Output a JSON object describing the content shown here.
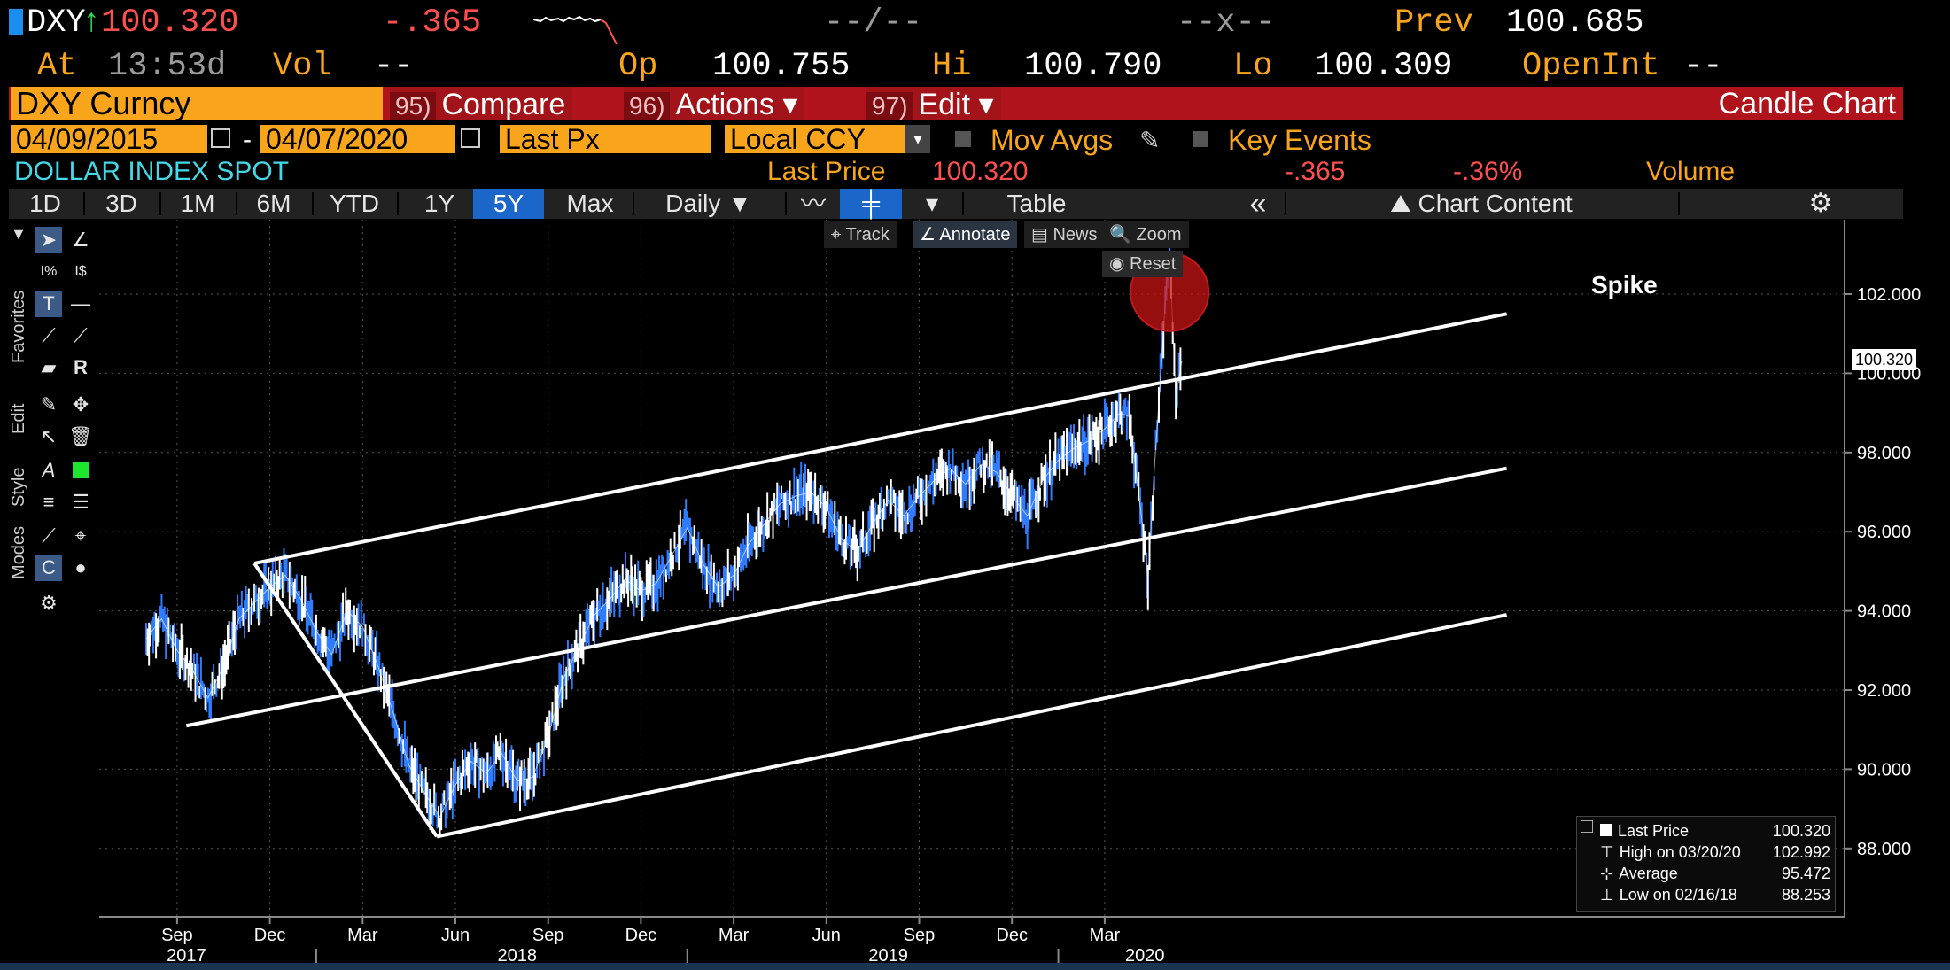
{
  "header": {
    "ticker": "DXY",
    "arrow": "↑",
    "price": "100.320",
    "change": "-.365",
    "bid_ask": "--/--",
    "size": "--x--",
    "prev_label": "Prev",
    "prev_value": "100.685",
    "at_label": "At",
    "time": "13:53d",
    "vol_label": "Vol",
    "vol_value": "--",
    "open_label": "Op",
    "open_value": "100.755",
    "high_label": "Hi",
    "high_value": "100.790",
    "low_label": "Lo",
    "low_value": "100.309",
    "openint_label": "OpenInt",
    "openint_value": "--"
  },
  "command_bar": {
    "security": "DXY Curncy",
    "compare_num": "95)",
    "compare_label": "Compare",
    "actions_num": "96)",
    "actions_label": "Actions ▾",
    "edit_num": "97)",
    "edit_label": "Edit ▾",
    "chart_type": "Candle Chart"
  },
  "settings_bar": {
    "start_date": "04/09/2015",
    "dash": "-",
    "end_date": "04/07/2020",
    "field": "Last Px",
    "currency": "Local CCY",
    "mov_avgs": "Mov Avgs",
    "key_events": "Key Events"
  },
  "info_bar": {
    "name": "DOLLAR INDEX SPOT",
    "last_price_label": "Last Price",
    "last_price_value": "100.320",
    "change": "-.365",
    "change_pct": "-.36%",
    "volume_label": "Volume"
  },
  "tabs": {
    "periods": [
      "1D",
      "3D",
      "1M",
      "6M",
      "YTD",
      "1Y",
      "5Y",
      "Max"
    ],
    "selected": "5Y",
    "frequency": "Daily ▼",
    "table_label": "Table",
    "collapse": "«",
    "chart_content": "Chart Content",
    "gear": "⚙"
  },
  "side_panel": {
    "labels": [
      "Favorites",
      "Edit",
      "Style",
      "Modes"
    ]
  },
  "chart_toolbar": {
    "track": "Track",
    "annotate": "Annotate",
    "news": "News",
    "zoom": "Zoom",
    "reset": "Reset"
  },
  "annotation": {
    "spike_label": "Spike"
  },
  "price_tag": "100.320",
  "legend": {
    "rows": [
      {
        "label": "Last Price",
        "value": "100.320"
      },
      {
        "label": "High on 03/20/20",
        "value": "102.992"
      },
      {
        "label": "Average",
        "value": "95.472"
      },
      {
        "label": "Low on 02/16/18",
        "value": "88.253"
      }
    ]
  },
  "colors": {
    "accent_orange": "#f8a51b",
    "command_red": "#b0131b",
    "selected_tab": "#1b66c9",
    "negative": "#ff4f4f",
    "candle_down": "#2f7cff"
  },
  "chart_data": {
    "type": "line",
    "title": "DOLLAR INDEX SPOT",
    "y_ticks": [
      "102.000",
      "100.000",
      "98.000",
      "96.000",
      "94.000",
      "92.000",
      "90.000",
      "88.000"
    ],
    "ylim": [
      87.0,
      103.5
    ],
    "x_month_labels": [
      "Sep",
      "Dec",
      "Mar",
      "Jun",
      "Sep",
      "Dec",
      "Mar",
      "Jun",
      "Sep",
      "Dec",
      "Mar"
    ],
    "x_year_labels": [
      "2017",
      "2018",
      "2019",
      "2020"
    ],
    "x_range_months": [
      0,
      33.5
    ],
    "series": [
      {
        "name": "DXY",
        "points": [
          [
            0.0,
            93.3
          ],
          [
            0.5,
            93.8
          ],
          [
            1.0,
            93.0
          ],
          [
            1.5,
            92.5
          ],
          [
            2.0,
            91.8
          ],
          [
            2.5,
            92.6
          ],
          [
            3.0,
            93.8
          ],
          [
            3.5,
            94.2
          ],
          [
            4.0,
            94.6
          ],
          [
            4.5,
            94.9
          ],
          [
            5.0,
            94.3
          ],
          [
            5.5,
            93.5
          ],
          [
            6.0,
            92.9
          ],
          [
            6.5,
            94.0
          ],
          [
            7.0,
            93.6
          ],
          [
            7.5,
            92.6
          ],
          [
            8.0,
            91.4
          ],
          [
            8.5,
            90.1
          ],
          [
            9.0,
            89.4
          ],
          [
            9.5,
            88.8
          ],
          [
            10.0,
            89.6
          ],
          [
            10.5,
            90.2
          ],
          [
            11.0,
            89.9
          ],
          [
            11.5,
            90.4
          ],
          [
            12.0,
            89.7
          ],
          [
            12.5,
            89.8
          ],
          [
            13.0,
            90.8
          ],
          [
            13.5,
            92.3
          ],
          [
            14.0,
            93.1
          ],
          [
            14.5,
            93.9
          ],
          [
            15.0,
            94.3
          ],
          [
            15.5,
            94.8
          ],
          [
            16.0,
            94.5
          ],
          [
            16.5,
            94.7
          ],
          [
            17.0,
            95.4
          ],
          [
            17.5,
            96.1
          ],
          [
            18.0,
            95.2
          ],
          [
            18.5,
            94.6
          ],
          [
            19.0,
            94.9
          ],
          [
            19.5,
            95.7
          ],
          [
            20.0,
            96.2
          ],
          [
            20.5,
            96.7
          ],
          [
            21.0,
            96.9
          ],
          [
            21.5,
            97.0
          ],
          [
            22.0,
            96.6
          ],
          [
            22.5,
            95.8
          ],
          [
            23.0,
            95.5
          ],
          [
            23.5,
            96.2
          ],
          [
            24.0,
            96.8
          ],
          [
            24.5,
            96.4
          ],
          [
            25.0,
            96.9
          ],
          [
            25.5,
            97.3
          ],
          [
            26.0,
            97.6
          ],
          [
            26.5,
            97.2
          ],
          [
            27.0,
            97.7
          ],
          [
            27.5,
            97.5
          ],
          [
            28.0,
            96.9
          ],
          [
            28.5,
            96.4
          ],
          [
            29.0,
            97.3
          ],
          [
            29.5,
            97.8
          ],
          [
            30.0,
            98.1
          ],
          [
            30.5,
            98.3
          ],
          [
            31.0,
            98.6
          ],
          [
            31.5,
            99.0
          ],
          [
            31.8,
            98.9
          ],
          [
            32.0,
            97.6
          ],
          [
            32.2,
            96.3
          ],
          [
            32.4,
            94.8
          ],
          [
            32.6,
            97.5
          ],
          [
            32.8,
            99.8
          ],
          [
            33.0,
            102.3
          ],
          [
            33.1,
            102.99
          ],
          [
            33.2,
            101.2
          ],
          [
            33.3,
            99.4
          ],
          [
            33.4,
            99.9
          ],
          [
            33.5,
            100.32
          ]
        ]
      }
    ],
    "channel_lines": [
      {
        "from": [
          3.5,
          95.2
        ],
        "to": [
          44.0,
          101.5
        ]
      },
      {
        "from": [
          1.3,
          91.1
        ],
        "to": [
          44.0,
          97.6
        ]
      },
      {
        "from": [
          9.4,
          88.3
        ],
        "to": [
          44.0,
          93.9
        ]
      },
      {
        "from": [
          3.5,
          95.2
        ],
        "to": [
          9.4,
          88.3
        ]
      }
    ],
    "highlight_point": {
      "x": 33.1,
      "y": 102.99
    }
  }
}
